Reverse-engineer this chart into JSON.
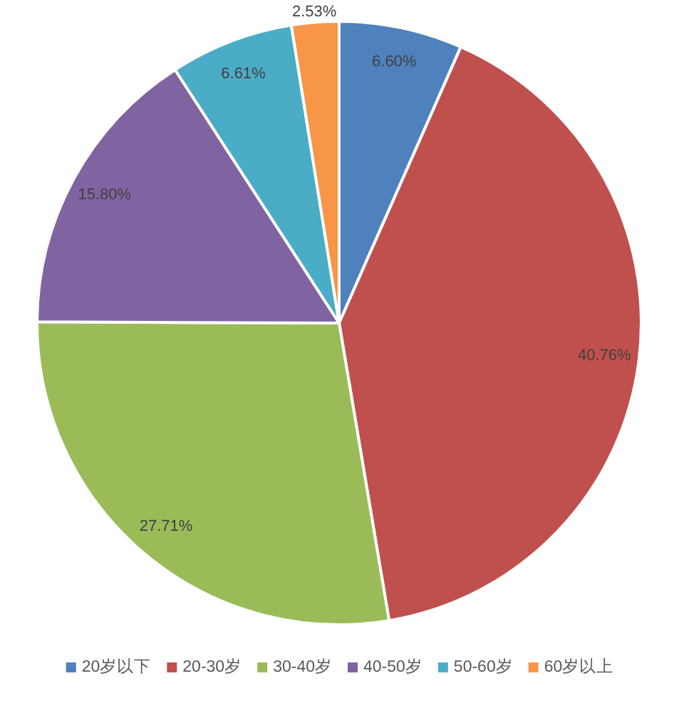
{
  "chart_data": {
    "type": "pie",
    "categories": [
      "20岁以下",
      "20-30岁",
      "30-40岁",
      "40-50岁",
      "50-60岁",
      "60岁以上"
    ],
    "values": [
      6.6,
      40.76,
      27.71,
      15.8,
      6.61,
      2.53
    ],
    "colors": [
      "#4f81bd",
      "#c0504d",
      "#9bbb59",
      "#8064a2",
      "#4bacc6",
      "#f79646"
    ],
    "value_labels": [
      "6.60%",
      "40.76%",
      "27.71%",
      "15.80%",
      "6.61%",
      "2.53%"
    ],
    "legend": "bottom"
  }
}
